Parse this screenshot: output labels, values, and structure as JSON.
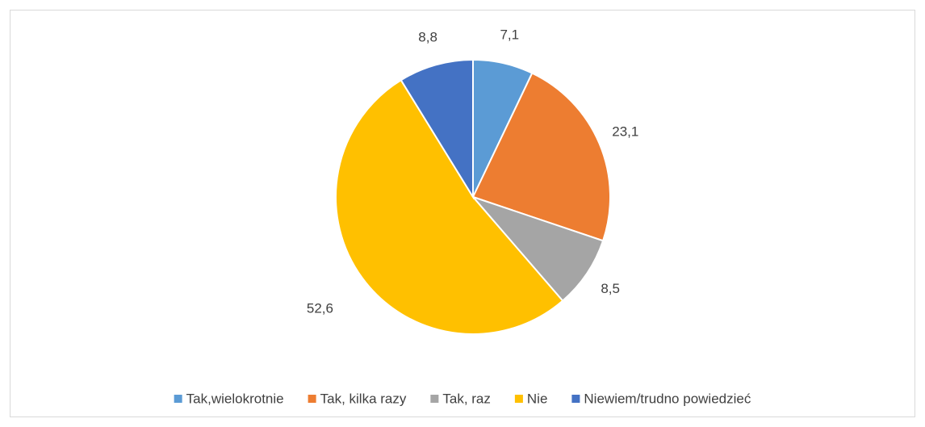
{
  "chart_data": {
    "type": "pie",
    "categories": [
      "Tak,wielokrotnie",
      "Tak, kilka razy",
      "Tak, raz",
      "Nie",
      "Niewiem/trudno powiedzieć"
    ],
    "values": [
      7.1,
      23.1,
      8.5,
      52.6,
      8.8
    ],
    "value_labels": [
      "7,1",
      "23,1",
      "8,5",
      "52,6",
      "8,8"
    ],
    "colors": [
      "#5b9bd5",
      "#ed7d31",
      "#a5a5a5",
      "#ffc000",
      "#4472c4"
    ],
    "legend": "bottom"
  }
}
